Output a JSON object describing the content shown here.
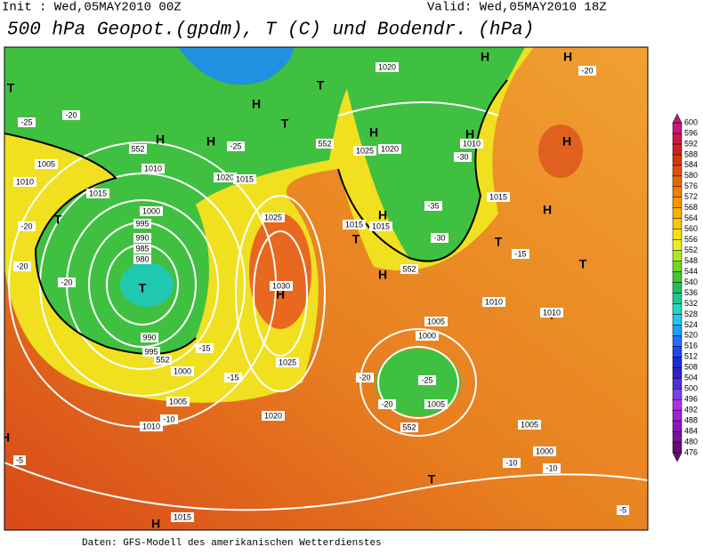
{
  "header": {
    "init": "Init : Wed,05MAY2010 00Z",
    "valid": "Valid: Wed,05MAY2010 18Z",
    "title": "500 hPa Geopot.(gpdm), T (C) und Bodendr. (hPa)"
  },
  "footer": "Daten: GFS-Modell des amerikanischen Wetterdienstes",
  "colorbar": {
    "levels": [
      476,
      480,
      484,
      488,
      492,
      496,
      500,
      504,
      508,
      512,
      516,
      520,
      524,
      528,
      532,
      536,
      540,
      544,
      548,
      552,
      556,
      560,
      564,
      568,
      572,
      576,
      580,
      584,
      588,
      592,
      596,
      600
    ],
    "colors": [
      "#6a0a7a",
      "#7a10a0",
      "#8e18c0",
      "#a020d8",
      "#b030e8",
      "#8040e8",
      "#5030d8",
      "#3020c8",
      "#2028d8",
      "#2048f0",
      "#2070f8",
      "#20a0f8",
      "#20c8f0",
      "#20d8c0",
      "#20c890",
      "#20c060",
      "#40c830",
      "#70d820",
      "#b0e820",
      "#e8f020",
      "#f8e010",
      "#f8c800",
      "#f8b000",
      "#f89800",
      "#f08000",
      "#e86800",
      "#e05000",
      "#d83800",
      "#d02020",
      "#c81848",
      "#c81878"
    ]
  },
  "map": {
    "labels": [
      "H",
      "H",
      "H",
      "H",
      "H",
      "H",
      "H",
      "H",
      "H",
      "H",
      "H",
      "H",
      "H",
      "H",
      "T",
      "T",
      "T",
      "T",
      "T",
      "T",
      "T",
      "T",
      "T",
      "T",
      "1000",
      "995",
      "990",
      "985",
      "980",
      "990",
      "995",
      "1000",
      "1005",
      "1010",
      "1015",
      "1020",
      "1025",
      "1030",
      "1025",
      "1020",
      "1015",
      "1010",
      "1005",
      "1010",
      "1015",
      "1020",
      "1015",
      "1010",
      "1005",
      "1000",
      "1005",
      "1010",
      "1015",
      "1015",
      "1020",
      "1025",
      "1010",
      "1005",
      "1000",
      "-25",
      "-20",
      "-20",
      "-20",
      "-15",
      "-15",
      "-10",
      "-10",
      "-5",
      "-5",
      "-20",
      "-25",
      "-30",
      "-35",
      "-30",
      "-20",
      "-15",
      "-10",
      "-20",
      "552",
      "552",
      "552",
      "552",
      "552",
      "-20",
      "-25"
    ]
  }
}
